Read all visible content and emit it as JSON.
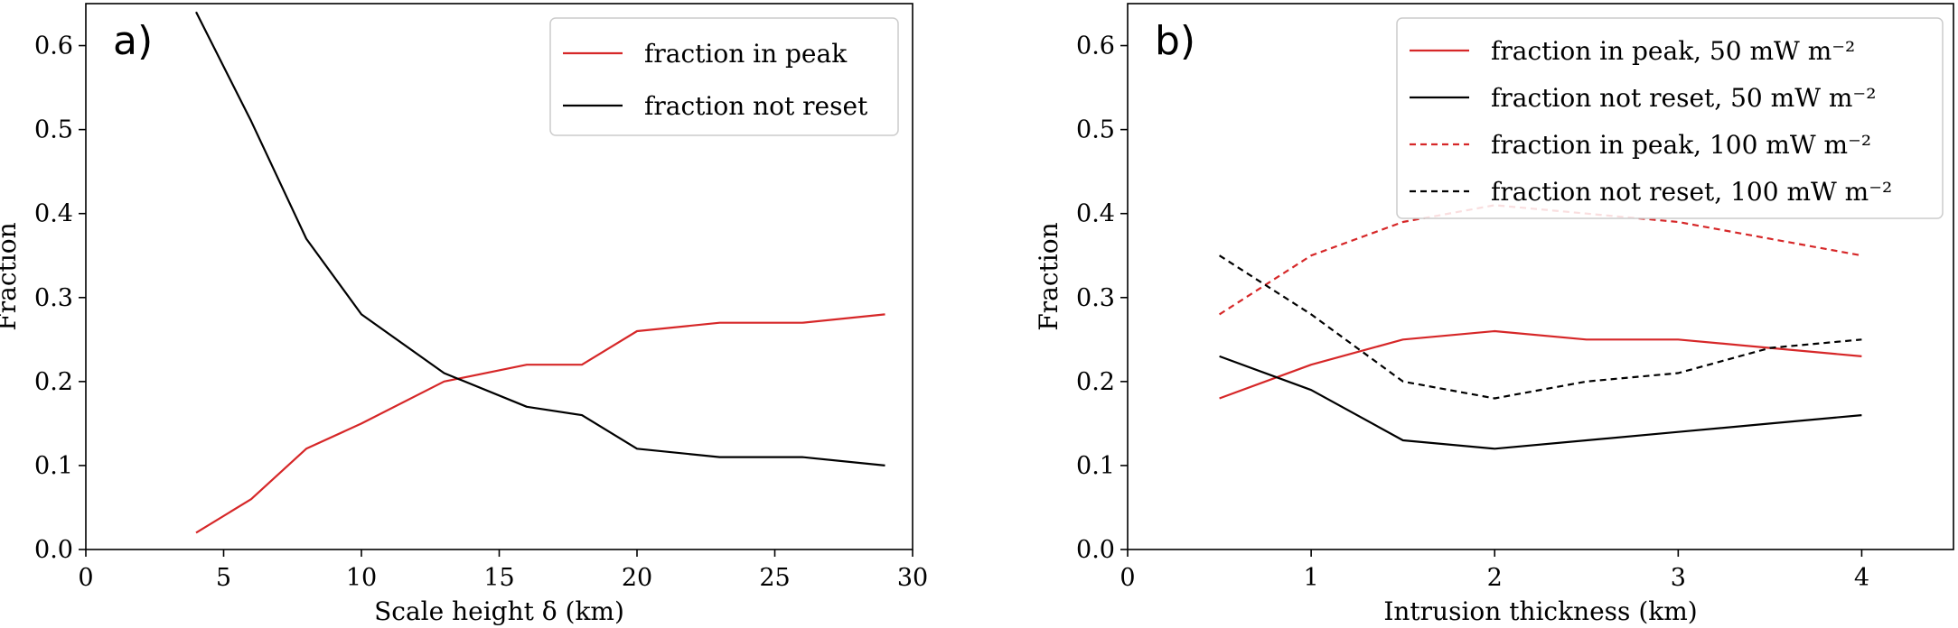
{
  "chart_data": [
    {
      "type": "line",
      "panel_label": "a)",
      "xlabel": "Scale height δ (km)",
      "ylabel": "Fraction",
      "xlim": [
        0,
        30
      ],
      "ylim": [
        0,
        0.65
      ],
      "xticks": [
        0,
        5,
        10,
        15,
        20,
        25,
        30
      ],
      "yticks": [
        0.0,
        0.1,
        0.2,
        0.3,
        0.4,
        0.5,
        0.6
      ],
      "grid": false,
      "legend_position": "top-right",
      "series": [
        {
          "name": "fraction in peak",
          "color": "#d62728",
          "dash": "solid",
          "x": [
            4,
            6,
            8,
            10,
            13,
            16,
            18,
            20,
            23,
            26,
            29
          ],
          "y": [
            0.02,
            0.06,
            0.12,
            0.15,
            0.2,
            0.22,
            0.22,
            0.26,
            0.27,
            0.27,
            0.28
          ]
        },
        {
          "name": "fraction not reset",
          "color": "#000000",
          "dash": "solid",
          "x": [
            4,
            6,
            8,
            10,
            13,
            16,
            18,
            20,
            23,
            26,
            29
          ],
          "y": [
            0.64,
            0.51,
            0.37,
            0.28,
            0.21,
            0.17,
            0.16,
            0.12,
            0.11,
            0.11,
            0.1
          ]
        }
      ]
    },
    {
      "type": "line",
      "panel_label": "b)",
      "xlabel": "Intrusion thickness (km)",
      "ylabel": "Fraction",
      "xlim": [
        0,
        4.5
      ],
      "ylim": [
        0,
        0.65
      ],
      "xticks": [
        0,
        1,
        2,
        3,
        4
      ],
      "yticks": [
        0.0,
        0.1,
        0.2,
        0.3,
        0.4,
        0.5,
        0.6
      ],
      "grid": false,
      "legend_position": "top-right",
      "series": [
        {
          "name": "fraction in peak, 50 mW m⁻²",
          "color": "#d62728",
          "dash": "solid",
          "x": [
            0.5,
            1,
            1.5,
            2,
            2.5,
            3,
            3.5,
            4
          ],
          "y": [
            0.18,
            0.22,
            0.25,
            0.26,
            0.25,
            0.25,
            0.24,
            0.23
          ]
        },
        {
          "name": "fraction not reset, 50 mW m⁻²",
          "color": "#000000",
          "dash": "solid",
          "x": [
            0.5,
            1,
            1.5,
            2,
            2.5,
            3,
            3.5,
            4
          ],
          "y": [
            0.23,
            0.19,
            0.13,
            0.12,
            0.13,
            0.14,
            0.15,
            0.16
          ]
        },
        {
          "name": "fraction in peak, 100 mW m⁻²",
          "color": "#d62728",
          "dash": "dashed",
          "x": [
            0.5,
            1,
            1.5,
            2,
            2.5,
            3,
            3.5,
            4
          ],
          "y": [
            0.28,
            0.35,
            0.39,
            0.41,
            0.4,
            0.39,
            0.37,
            0.35
          ]
        },
        {
          "name": "fraction not reset, 100 mW m⁻²",
          "color": "#000000",
          "dash": "dashed",
          "x": [
            0.5,
            1,
            1.5,
            2,
            2.5,
            3,
            3.5,
            4
          ],
          "y": [
            0.35,
            0.28,
            0.2,
            0.18,
            0.2,
            0.21,
            0.24,
            0.25
          ]
        }
      ]
    }
  ]
}
